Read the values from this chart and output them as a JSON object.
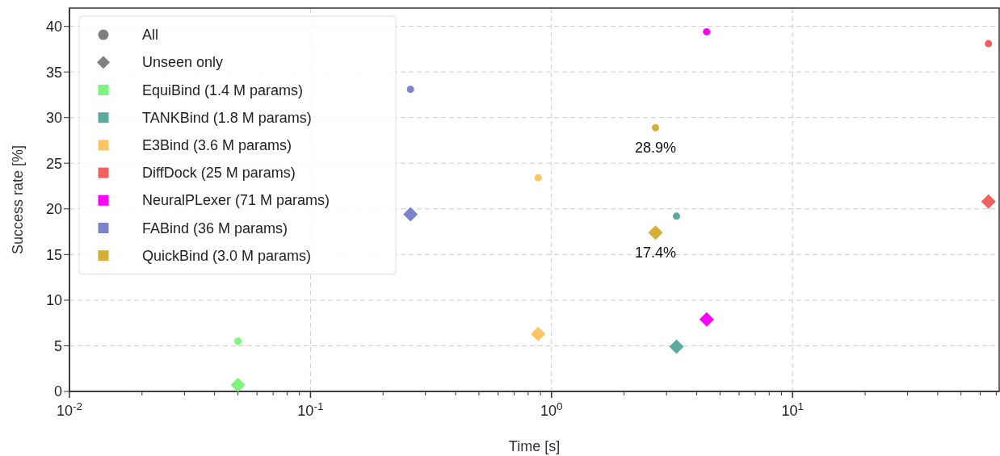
{
  "chart_data": {
    "type": "scatter",
    "xlabel": "Time [s]",
    "ylabel": "Success rate [%]",
    "log": "x",
    "grid": true,
    "legend": "top left",
    "xlim": [
      0.01,
      72
    ],
    "ylim": [
      0,
      42
    ],
    "xticks": [
      {
        "value": 0.01,
        "label": "10$^{-2}$"
      },
      {
        "value": 0.02,
        "label": null
      },
      {
        "value": 0.03,
        "label": null
      },
      {
        "value": 0.04,
        "label": null
      },
      {
        "value": 0.05,
        "label": null
      },
      {
        "value": 0.06,
        "label": null
      },
      {
        "value": 0.07,
        "label": null
      },
      {
        "value": 0.08,
        "label": null
      },
      {
        "value": 0.09,
        "label": null
      },
      {
        "value": 0.1,
        "label": "10$^{-1}$"
      },
      {
        "value": 0.2,
        "label": null
      },
      {
        "value": 0.3,
        "label": null
      },
      {
        "value": 0.4,
        "label": null
      },
      {
        "value": 0.5,
        "label": null
      },
      {
        "value": 0.6,
        "label": null
      },
      {
        "value": 0.7,
        "label": null
      },
      {
        "value": 0.8,
        "label": null
      },
      {
        "value": 0.9,
        "label": null
      },
      {
        "value": 1,
        "label": "10$^{0}$"
      },
      {
        "value": 2,
        "label": null
      },
      {
        "value": 3,
        "label": null
      },
      {
        "value": 4,
        "label": null
      },
      {
        "value": 5,
        "label": null
      },
      {
        "value": 6,
        "label": null
      },
      {
        "value": 7,
        "label": null
      },
      {
        "value": 8,
        "label": null
      },
      {
        "value": 9,
        "label": null
      },
      {
        "value": 10,
        "label": "10$^{1}$"
      },
      {
        "value": 20,
        "label": null
      },
      {
        "value": 30,
        "label": null
      },
      {
        "value": 40,
        "label": null
      },
      {
        "value": 50,
        "label": null
      },
      {
        "value": 60,
        "label": null
      },
      {
        "value": 70,
        "label": null
      }
    ],
    "yticks": [
      0,
      5,
      10,
      15,
      20,
      25,
      30,
      35,
      40
    ],
    "series": [
      {
        "name": "All",
        "color": "#808080",
        "marker": "circle"
      },
      {
        "name": "Unseen only",
        "color": "#808080",
        "marker": "diamond"
      },
      {
        "name": "EquiBind (1.4 M params)",
        "color": "#7df57d",
        "marker": "circle",
        "x": [
          0.05
        ],
        "values": [
          5.5
        ]
      },
      {
        "color": "#7df57d",
        "marker": "diamond",
        "x": [
          0.05
        ],
        "values": [
          0.7
        ]
      },
      {
        "name": "TANKBind (1.8 M params)",
        "color": "#5aab9e",
        "marker": "circle",
        "x": [
          3.3
        ],
        "values": [
          19.2
        ]
      },
      {
        "color": "#5aab9e",
        "marker": "diamond",
        "x": [
          3.3
        ],
        "values": [
          4.9
        ]
      },
      {
        "name": "E3Bind (3.6 M params)",
        "color": "#fcc462",
        "marker": "circle",
        "x": [
          0.88
        ],
        "values": [
          23.4
        ]
      },
      {
        "color": "#fcc462",
        "marker": "diamond",
        "x": [
          0.88
        ],
        "values": [
          6.3
        ]
      },
      {
        "name": "DiffDock (25 M params)",
        "color": "#f0605f",
        "marker": "circle",
        "x": [
          65
        ],
        "values": [
          38.1
        ]
      },
      {
        "color": "#f0605f",
        "marker": "diamond",
        "x": [
          65
        ],
        "values": [
          20.8
        ]
      },
      {
        "name": "NeuralPLexer (71 M params)",
        "color": "#ff00ff",
        "marker": "circle",
        "x": [
          4.4
        ],
        "values": [
          39.4
        ]
      },
      {
        "color": "#ff00ff",
        "marker": "diamond",
        "x": [
          4.4
        ],
        "values": [
          7.9
        ]
      },
      {
        "name": "FABind (36 M params)",
        "color": "#7b83cc",
        "marker": "circle",
        "x": [
          0.26
        ],
        "values": [
          33.1
        ]
      },
      {
        "color": "#7b83cc",
        "marker": "diamond",
        "x": [
          0.26
        ],
        "values": [
          19.4
        ]
      },
      {
        "name": "QuickBind (3.0 M params)",
        "color": "#d4ae35",
        "marker": "circle",
        "x": [
          2.7
        ],
        "values": [
          28.9
        ]
      },
      {
        "color": "#d4ae35",
        "marker": "diamond",
        "x": [
          2.7
        ],
        "values": [
          17.4
        ]
      }
    ],
    "annotations": [
      {
        "text": "28.9%",
        "x": 2.7,
        "y": 28.9
      },
      {
        "text": "17.4%",
        "x": 2.7,
        "y": 17.4
      }
    ]
  }
}
